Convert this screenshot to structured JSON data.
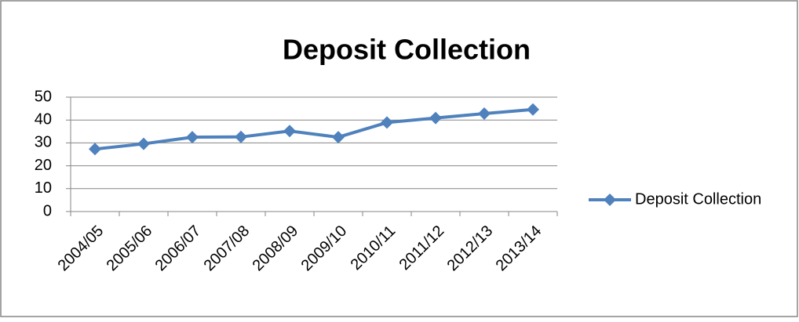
{
  "chart_data": {
    "type": "line",
    "title": "Deposit Collection",
    "categories": [
      "2004/05",
      "2005/06",
      "2006/07",
      "2007/08",
      "2008/09",
      "2009/10",
      "2010/11",
      "2011/12",
      "2012/13",
      "2013/14"
    ],
    "series": [
      {
        "name": "Deposit Collection",
        "color": "#4f81bd",
        "values": [
          27.3,
          29.6,
          32.5,
          32.6,
          35.2,
          32.5,
          38.9,
          40.9,
          42.8,
          44.6
        ]
      }
    ],
    "ylim": [
      0,
      50
    ],
    "yticks": [
      0,
      10,
      20,
      30,
      40,
      50
    ],
    "grid": true,
    "legend": "right"
  }
}
